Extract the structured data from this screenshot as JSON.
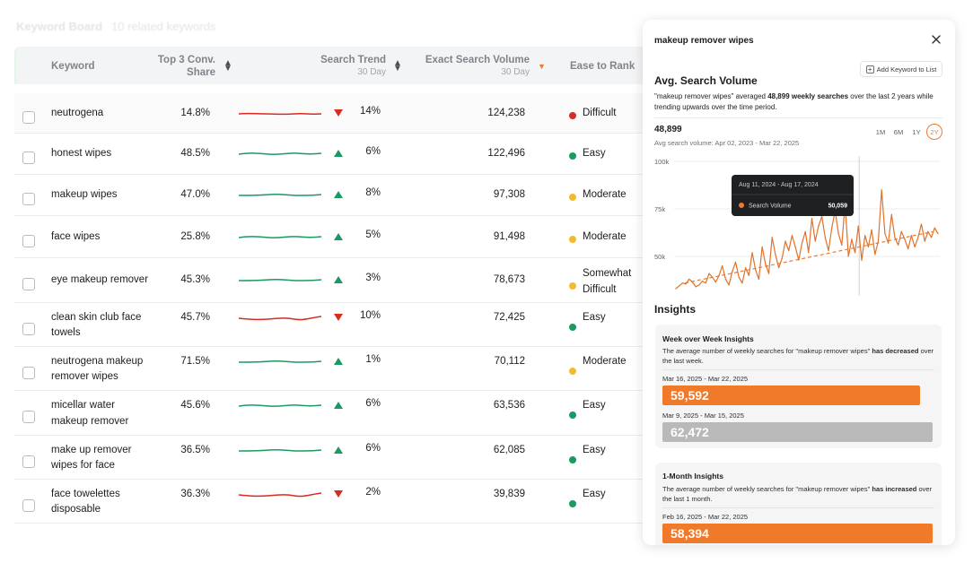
{
  "page": {
    "ghost_title": "Keyword Board",
    "ghost_subtitle": "10 related keywords"
  },
  "table": {
    "headers": {
      "keyword": "Keyword",
      "conv_share": [
        "Top 3 Conv.",
        "Share"
      ],
      "search_trend": "Search Trend",
      "search_trend_sub": "30 Day",
      "exact_volume": "Exact Search Volume",
      "exact_volume_sub": "30 Day",
      "ease": "Ease to Rank"
    },
    "rows": [
      {
        "keyword": "neutrogena",
        "share": "14.8%",
        "trend": "down",
        "trend_pct": "14%",
        "volume": "124,238",
        "ease": "Difficult",
        "ease_color": "#d92b1f"
      },
      {
        "keyword": "honest wipes",
        "share": "48.5%",
        "trend": "up",
        "trend_pct": "6%",
        "volume": "122,496",
        "ease": "Easy",
        "ease_color": "#1a9a62"
      },
      {
        "keyword": "makeup wipes",
        "share": "47.0%",
        "trend": "up",
        "trend_pct": "8%",
        "volume": "97,308",
        "ease": "Moderate",
        "ease_color": "#f2bb2e"
      },
      {
        "keyword": "face wipes",
        "share": "25.8%",
        "trend": "up",
        "trend_pct": "5%",
        "volume": "91,498",
        "ease": "Moderate",
        "ease_color": "#f2bb2e"
      },
      {
        "keyword": "eye makeup remover",
        "share": "45.3%",
        "trend": "up",
        "trend_pct": "3%",
        "volume": "78,673",
        "ease": "Somewhat Difficult",
        "ease_color": "#f2bb2e"
      },
      {
        "keyword": "clean skin club face towels",
        "share": "45.7%",
        "trend": "down",
        "trend_pct": "10%",
        "volume": "72,425",
        "ease": "Easy",
        "ease_color": "#1a9a62"
      },
      {
        "keyword": "neutrogena makeup remover wipes",
        "share": "71.5%",
        "trend": "up",
        "trend_pct": "1%",
        "volume": "70,112",
        "ease": "Moderate",
        "ease_color": "#f2bb2e"
      },
      {
        "keyword": "micellar water makeup remover",
        "share": "45.6%",
        "trend": "up",
        "trend_pct": "6%",
        "volume": "63,536",
        "ease": "Easy",
        "ease_color": "#1a9a62"
      },
      {
        "keyword": "make up remover wipes for face",
        "share": "36.5%",
        "trend": "up",
        "trend_pct": "6%",
        "volume": "62,085",
        "ease": "Easy",
        "ease_color": "#1a9a62"
      },
      {
        "keyword": "face towelettes disposable",
        "share": "36.3%",
        "trend": "down",
        "trend_pct": "2%",
        "volume": "39,839",
        "ease": "Easy",
        "ease_color": "#1a9a62"
      }
    ]
  },
  "panel": {
    "title": "makeup remover wipes",
    "close_icon": "close-icon",
    "add_button": "Add Keyword to List",
    "avg_title": "Avg. Search Volume",
    "avg_desc_pre": "\"makeup remover wipes\" averaged ",
    "avg_desc_bold": "48,899 weekly searches",
    "avg_desc_post": " over the last 2 years while trending upwards over the time period.",
    "big_number": "48,899",
    "big_number_sub": "Avg search volume: Apr 02, 2023 - Mar 22, 2025",
    "ranges": [
      "1M",
      "6M",
      "1Y",
      "2Y"
    ],
    "active_range": "2Y",
    "tooltip": {
      "date": "Aug 11, 2024 - Aug 17, 2024",
      "label": "Search Volume",
      "value": "50,059"
    },
    "insights_title": "Insights",
    "week_insight": {
      "title": "Week over Week Insights",
      "desc_pre": "The average number of weekly searches for \"makeup remover wipes\" ",
      "desc_bold": "has decreased",
      "desc_post": " over the last week.",
      "current_period": "Mar 16, 2025 - Mar 22, 2025",
      "current_value": "59,592",
      "prev_period": "Mar 9, 2025 - Mar 15, 2025",
      "prev_value": "62,472"
    },
    "month_insight": {
      "title": "1-Month Insights",
      "desc_pre": "The average number of weekly searches for \"makeup remover wipes\" ",
      "desc_bold": "has increased",
      "desc_post": " over the last 1 month.",
      "current_period": "Feb 16, 2025 - Mar 22, 2025",
      "current_value": "58,394"
    },
    "colors": {
      "accent": "#f07a2a",
      "grey_bar": "#b9b9b9"
    }
  },
  "chart_data": {
    "type": "line",
    "ytick_labels": [
      "100k",
      "75k",
      "50k"
    ],
    "ylim": [
      30000,
      100000
    ],
    "trendline": {
      "style": "dashed",
      "direction": "upward"
    },
    "series": [
      {
        "values": [
          33000,
          34500,
          36000,
          35500,
          38000,
          36500,
          34000,
          35000,
          37000,
          36000,
          41000,
          39000,
          36500,
          40000,
          45000,
          38000,
          35000,
          42000,
          47000,
          39000,
          36000,
          44000,
          40000,
          52000,
          43000,
          38000,
          55000,
          46000,
          41000,
          60000,
          51000,
          44000,
          49000,
          58000,
          53000,
          61000,
          55000,
          48000,
          57000,
          63000,
          52000,
          70000,
          58000,
          66000,
          71000,
          60000,
          53000,
          65000,
          74000,
          62000,
          56000,
          78000,
          50059,
          59000,
          52000,
          66000,
          48000,
          61000,
          55000,
          64000,
          51000,
          58000,
          85000,
          62000,
          57000,
          72000,
          60000,
          56000,
          63000,
          59000,
          54000,
          61000,
          55000,
          60000,
          67000,
          58000,
          63000,
          60000,
          65000,
          62000
        ]
      }
    ]
  }
}
